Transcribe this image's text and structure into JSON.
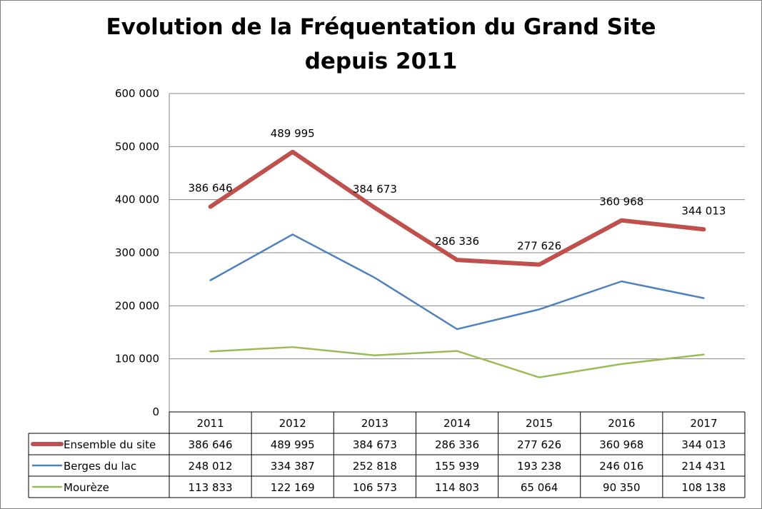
{
  "chart_data": {
    "type": "line",
    "title": "Evolution de la Fréquentation du Grand Site",
    "subtitle": "depuis 2011",
    "categories": [
      "2011",
      "2012",
      "2013",
      "2014",
      "2015",
      "2016",
      "2017"
    ],
    "ylim": [
      0,
      600000
    ],
    "yticks": [
      0,
      100000,
      200000,
      300000,
      400000,
      500000,
      600000
    ],
    "ytick_labels": [
      "0",
      "100 000",
      "200 000",
      "300 000",
      "400 000",
      "500 000",
      "600 000"
    ],
    "grid": true,
    "legend": "data-table",
    "series": [
      {
        "name": "Ensemble du site",
        "color": "#c0504d",
        "values": [
          386646,
          489995,
          384673,
          286336,
          277626,
          360968,
          344013
        ],
        "labels": [
          "386 646",
          "489 995",
          "384 673",
          "286 336",
          "277 626",
          "360 968",
          "344 013"
        ],
        "data_labels": true
      },
      {
        "name": "Berges du lac",
        "color": "#4f81bd",
        "values": [
          248012,
          334387,
          252818,
          155939,
          193238,
          246016,
          214431
        ],
        "labels": [
          "248 012",
          "334 387",
          "252 818",
          "155 939",
          "193 238",
          "246 016",
          "214 431"
        ],
        "data_labels": false
      },
      {
        "name": "Mourèze",
        "color": "#9bbb59",
        "values": [
          113833,
          122169,
          106573,
          114803,
          65064,
          90350,
          108138
        ],
        "labels": [
          "113 833",
          "122 169",
          "106 573",
          "114 803",
          "65 064",
          "90 350",
          "108 138"
        ],
        "data_labels": false
      }
    ]
  }
}
